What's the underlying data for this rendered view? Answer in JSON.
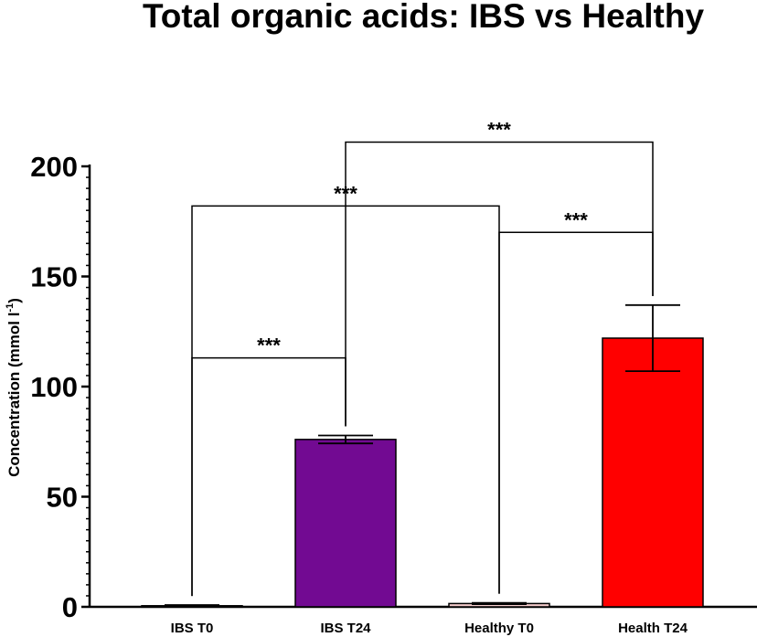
{
  "chart_data": {
    "type": "bar",
    "title": "Total organic acids: IBS vs Healthy",
    "ylabel_main": "Concentration (mmol l",
    "ylabel_sup": "-1",
    "ylabel_end": ")",
    "ylim": [
      0,
      200
    ],
    "yticks": [
      0,
      50,
      100,
      150,
      200
    ],
    "categories": [
      "IBS T0",
      "IBS T24",
      "Healthy T0",
      "Health T24"
    ],
    "values": [
      0.5,
      76,
      1.5,
      122
    ],
    "errors": [
      0.3,
      1.8,
      0.3,
      15
    ],
    "colors": [
      "#7a7a7a",
      "#720a92",
      "#f4cccc",
      "#ff0000"
    ],
    "significance": [
      {
        "from": 0,
        "to": 1,
        "label": "***",
        "height": 113
      },
      {
        "from": 0,
        "to": 2,
        "label": "***",
        "height": 182
      },
      {
        "from": 2,
        "to": 3,
        "label": "***",
        "height": 170
      },
      {
        "from": 1,
        "to": 3,
        "label": "***",
        "height": 211
      }
    ]
  }
}
